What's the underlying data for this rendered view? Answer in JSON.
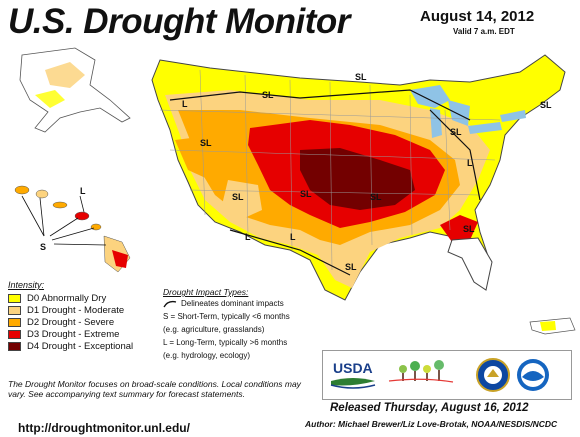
{
  "title": "U.S. Drought Monitor",
  "date": "August 14, 2012",
  "valid": "Valid 7 a.m. EDT",
  "legend": {
    "header": "Intensity:",
    "items": [
      {
        "label": "D0 Abnormally Dry",
        "color": "#ffff00"
      },
      {
        "label": "D1 Drought - Moderate",
        "color": "#fcd37f"
      },
      {
        "label": "D2 Drought - Severe",
        "color": "#ffaa00"
      },
      {
        "label": "D3 Drought - Extreme",
        "color": "#e60000"
      },
      {
        "label": "D4 Drought - Exceptional",
        "color": "#730000"
      }
    ]
  },
  "impact": {
    "header": "Drought Impact Types:",
    "delineates": "Delineates dominant impacts",
    "short_term": "S = Short-Term, typically <6 months",
    "short_term_eg": "(e.g. agriculture, grasslands)",
    "long_term": "L = Long-Term, typically >6 months",
    "long_term_eg": "(e.g. hydrology, ecology)"
  },
  "note": "The Drought Monitor focuses on broad-scale conditions. Local conditions may vary. See accompanying text summary for forecast statements.",
  "url": "http://droughtmonitor.unl.edu/",
  "released": "Released Thursday, August 16, 2012",
  "author": "Author: Michael Brewer/Liz Love-Brotak, NOAA/NESDIS/NCDC",
  "logos": {
    "usda": "USDA",
    "ndmc": "National Drought Mitigation Center",
    "noaa": "NOAA"
  },
  "map_labels": {
    "sl": "SL",
    "l": "L",
    "s": "S"
  },
  "colors": {
    "water": "#8fc3e6",
    "state_border": "#999999",
    "land": "#ffffff"
  }
}
